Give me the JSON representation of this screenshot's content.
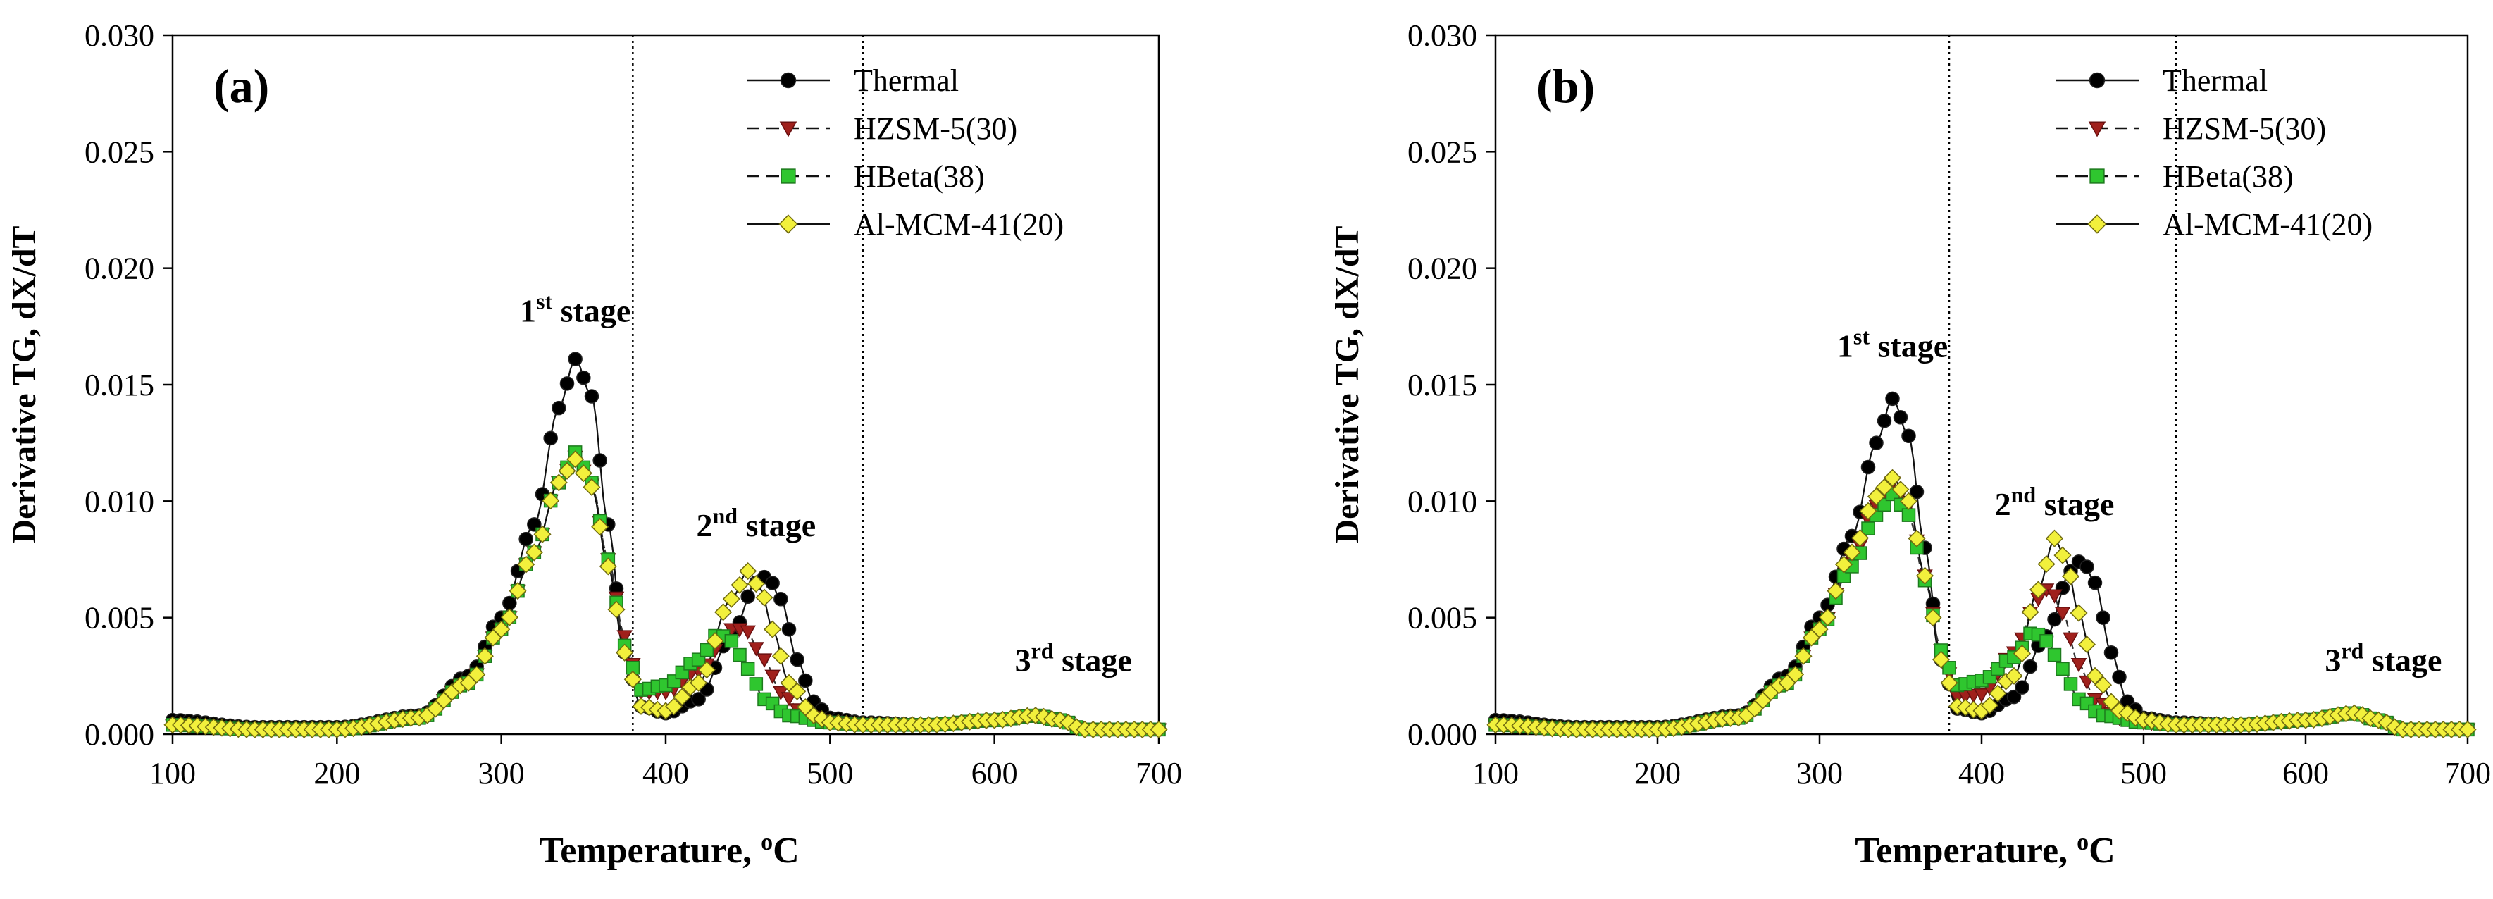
{
  "chart_data": [
    {
      "type": "line",
      "panel": "(a)",
      "xlabel": "Temperature,",
      "xlabel_unit_sup": "o",
      "xlabel_unit": "C",
      "ylabel": "Derivative TG, dX/dT",
      "xlim": [
        100,
        700
      ],
      "ylim": [
        0,
        0.03
      ],
      "xticks": [
        "100",
        "200",
        "300",
        "400",
        "500",
        "600",
        "700"
      ],
      "yticks": [
        "0.000",
        "0.005",
        "0.010",
        "0.015",
        "0.020",
        "0.025",
        "0.030"
      ],
      "grid": false,
      "legend_position": "top-right",
      "stage_dividers": [
        380,
        520
      ],
      "annotations": [
        {
          "base": "1",
          "sup": "st",
          "tail": " stage",
          "x": 345,
          "y": 0.0177
        },
        {
          "base": "2",
          "sup": "nd",
          "tail": " stage",
          "x": 455,
          "y": 0.0085
        },
        {
          "base": "3",
          "sup": "rd",
          "tail": " stage",
          "x": 648,
          "y": 0.0027
        }
      ],
      "series": [
        {
          "name": "Thermal",
          "color": "#000000",
          "marker": "circle",
          "dash": "solid",
          "points": [
            [
              100,
              0.0006
            ],
            [
              150,
              0.0003
            ],
            [
              200,
              0.0003
            ],
            [
              250,
              0.0008
            ],
            [
              280,
              0.0025
            ],
            [
              300,
              0.005
            ],
            [
              320,
              0.009
            ],
            [
              335,
              0.014
            ],
            [
              345,
              0.0161
            ],
            [
              355,
              0.0145
            ],
            [
              365,
              0.009
            ],
            [
              375,
              0.0035
            ],
            [
              385,
              0.0012
            ],
            [
              400,
              0.0009
            ],
            [
              420,
              0.0015
            ],
            [
              440,
              0.0042
            ],
            [
              455,
              0.0065
            ],
            [
              462,
              0.0068
            ],
            [
              470,
              0.0058
            ],
            [
              480,
              0.0032
            ],
            [
              490,
              0.0014
            ],
            [
              500,
              0.0007
            ],
            [
              520,
              0.0005
            ],
            [
              560,
              0.0004
            ],
            [
              600,
              0.0006
            ],
            [
              625,
              0.0008
            ],
            [
              640,
              0.0006
            ],
            [
              655,
              0.0002
            ],
            [
              700,
              0.0002
            ]
          ]
        },
        {
          "name": "HZSM-5(30)",
          "color": "#a0201c",
          "marker": "triangle-down",
          "dash": "dashed",
          "points": [
            [
              100,
              0.0004
            ],
            [
              150,
              0.0002
            ],
            [
              200,
              0.0002
            ],
            [
              250,
              0.0007
            ],
            [
              280,
              0.0022
            ],
            [
              300,
              0.0045
            ],
            [
              320,
              0.0078
            ],
            [
              335,
              0.0108
            ],
            [
              345,
              0.0119
            ],
            [
              355,
              0.0107
            ],
            [
              365,
              0.0075
            ],
            [
              375,
              0.0042
            ],
            [
              385,
              0.0018
            ],
            [
              400,
              0.0018
            ],
            [
              420,
              0.0027
            ],
            [
              440,
              0.0045
            ],
            [
              448,
              0.0045
            ],
            [
              460,
              0.0032
            ],
            [
              470,
              0.0018
            ],
            [
              485,
              0.0008
            ],
            [
              500,
              0.0005
            ],
            [
              520,
              0.0004
            ],
            [
              560,
              0.0004
            ],
            [
              600,
              0.0006
            ],
            [
              625,
              0.0008
            ],
            [
              640,
              0.0006
            ],
            [
              655,
              0.0002
            ],
            [
              700,
              0.0002
            ]
          ]
        },
        {
          "name": "HBeta(38)",
          "color": "#2fc62f",
          "marker": "square",
          "dash": "dashed",
          "points": [
            [
              100,
              0.0004
            ],
            [
              150,
              0.0002
            ],
            [
              200,
              0.0002
            ],
            [
              250,
              0.0007
            ],
            [
              280,
              0.0022
            ],
            [
              300,
              0.0045
            ],
            [
              320,
              0.0078
            ],
            [
              335,
              0.0108
            ],
            [
              345,
              0.0121
            ],
            [
              355,
              0.0108
            ],
            [
              365,
              0.0075
            ],
            [
              375,
              0.0038
            ],
            [
              385,
              0.0019
            ],
            [
              400,
              0.0021
            ],
            [
              420,
              0.0032
            ],
            [
              432,
              0.0043
            ],
            [
              440,
              0.004
            ],
            [
              450,
              0.0028
            ],
            [
              460,
              0.0015
            ],
            [
              475,
              0.0008
            ],
            [
              500,
              0.0005
            ],
            [
              520,
              0.0004
            ],
            [
              560,
              0.0004
            ],
            [
              600,
              0.0006
            ],
            [
              625,
              0.0008
            ],
            [
              640,
              0.0006
            ],
            [
              655,
              0.0002
            ],
            [
              700,
              0.0002
            ]
          ]
        },
        {
          "name": "Al-MCM-41(20)",
          "color": "#f2f03c",
          "marker": "diamond",
          "dash": "solid",
          "points": [
            [
              100,
              0.0004
            ],
            [
              150,
              0.0002
            ],
            [
              200,
              0.0002
            ],
            [
              250,
              0.0007
            ],
            [
              280,
              0.0022
            ],
            [
              300,
              0.0045
            ],
            [
              320,
              0.0078
            ],
            [
              335,
              0.0108
            ],
            [
              345,
              0.0118
            ],
            [
              355,
              0.0106
            ],
            [
              365,
              0.0072
            ],
            [
              375,
              0.0035
            ],
            [
              385,
              0.0012
            ],
            [
              400,
              0.001
            ],
            [
              420,
              0.0022
            ],
            [
              440,
              0.0058
            ],
            [
              450,
              0.007
            ],
            [
              458,
              0.0062
            ],
            [
              465,
              0.0045
            ],
            [
              475,
              0.0022
            ],
            [
              490,
              0.0008
            ],
            [
              500,
              0.0005
            ],
            [
              520,
              0.0004
            ],
            [
              560,
              0.0004
            ],
            [
              600,
              0.0006
            ],
            [
              625,
              0.0008
            ],
            [
              640,
              0.0006
            ],
            [
              655,
              0.0002
            ],
            [
              700,
              0.0002
            ]
          ]
        }
      ]
    },
    {
      "type": "line",
      "panel": "(b)",
      "xlabel": "Temperature,",
      "xlabel_unit_sup": "o",
      "xlabel_unit": "C",
      "ylabel": "Derivative TG, dX/dT",
      "xlim": [
        100,
        700
      ],
      "ylim": [
        0,
        0.03
      ],
      "xticks": [
        "100",
        "200",
        "300",
        "400",
        "500",
        "600",
        "700"
      ],
      "yticks": [
        "0.000",
        "0.005",
        "0.010",
        "0.015",
        "0.020",
        "0.025",
        "0.030"
      ],
      "grid": false,
      "legend_position": "top-right",
      "stage_dividers": [
        380,
        520
      ],
      "annotations": [
        {
          "base": "1",
          "sup": "st",
          "tail": " stage",
          "x": 345,
          "y": 0.0162
        },
        {
          "base": "2",
          "sup": "nd",
          "tail": " stage",
          "x": 445,
          "y": 0.0094
        },
        {
          "base": "3",
          "sup": "rd",
          "tail": " stage",
          "x": 648,
          "y": 0.0027
        }
      ],
      "series": [
        {
          "name": "Thermal",
          "color": "#000000",
          "marker": "circle",
          "dash": "solid",
          "points": [
            [
              100,
              0.0006
            ],
            [
              150,
              0.0003
            ],
            [
              200,
              0.0003
            ],
            [
              250,
              0.0008
            ],
            [
              280,
              0.0025
            ],
            [
              300,
              0.005
            ],
            [
              320,
              0.0085
            ],
            [
              335,
              0.0125
            ],
            [
              345,
              0.0144
            ],
            [
              355,
              0.0128
            ],
            [
              365,
              0.008
            ],
            [
              375,
              0.0032
            ],
            [
              385,
              0.0011
            ],
            [
              400,
              0.0009
            ],
            [
              420,
              0.0016
            ],
            [
              440,
              0.0042
            ],
            [
              455,
              0.007
            ],
            [
              462,
              0.0075
            ],
            [
              470,
              0.0065
            ],
            [
              480,
              0.0035
            ],
            [
              490,
              0.0014
            ],
            [
              500,
              0.0007
            ],
            [
              520,
              0.0005
            ],
            [
              560,
              0.0004
            ],
            [
              600,
              0.0006
            ],
            [
              630,
              0.0009
            ],
            [
              645,
              0.0006
            ],
            [
              660,
              0.0002
            ],
            [
              700,
              0.0002
            ]
          ]
        },
        {
          "name": "HZSM-5(30)",
          "color": "#a0201c",
          "marker": "triangle-down",
          "dash": "dashed",
          "points": [
            [
              100,
              0.0004
            ],
            [
              150,
              0.0002
            ],
            [
              200,
              0.0002
            ],
            [
              250,
              0.0007
            ],
            [
              280,
              0.0022
            ],
            [
              300,
              0.0045
            ],
            [
              320,
              0.0075
            ],
            [
              335,
              0.0098
            ],
            [
              345,
              0.0108
            ],
            [
              355,
              0.0098
            ],
            [
              365,
              0.0068
            ],
            [
              375,
              0.0036
            ],
            [
              385,
              0.0016
            ],
            [
              400,
              0.0017
            ],
            [
              420,
              0.0035
            ],
            [
              435,
              0.0058
            ],
            [
              442,
              0.0063
            ],
            [
              450,
              0.0052
            ],
            [
              460,
              0.003
            ],
            [
              470,
              0.0015
            ],
            [
              485,
              0.0007
            ],
            [
              500,
              0.0005
            ],
            [
              520,
              0.0004
            ],
            [
              560,
              0.0004
            ],
            [
              600,
              0.0006
            ],
            [
              630,
              0.0009
            ],
            [
              645,
              0.0006
            ],
            [
              660,
              0.0002
            ],
            [
              700,
              0.0002
            ]
          ]
        },
        {
          "name": "HBeta(38)",
          "color": "#2fc62f",
          "marker": "square",
          "dash": "dashed",
          "points": [
            [
              100,
              0.0004
            ],
            [
              150,
              0.0002
            ],
            [
              200,
              0.0002
            ],
            [
              250,
              0.0007
            ],
            [
              280,
              0.0022
            ],
            [
              300,
              0.0045
            ],
            [
              320,
              0.0072
            ],
            [
              335,
              0.0094
            ],
            [
              345,
              0.0103
            ],
            [
              355,
              0.0094
            ],
            [
              365,
              0.0066
            ],
            [
              375,
              0.0036
            ],
            [
              385,
              0.0021
            ],
            [
              400,
              0.0023
            ],
            [
              420,
              0.0033
            ],
            [
              432,
              0.0044
            ],
            [
              440,
              0.004
            ],
            [
              450,
              0.0028
            ],
            [
              460,
              0.0015
            ],
            [
              475,
              0.0008
            ],
            [
              500,
              0.0005
            ],
            [
              520,
              0.0004
            ],
            [
              560,
              0.0004
            ],
            [
              600,
              0.0006
            ],
            [
              630,
              0.0009
            ],
            [
              645,
              0.0006
            ],
            [
              660,
              0.0002
            ],
            [
              700,
              0.0002
            ]
          ]
        },
        {
          "name": "Al-MCM-41(20)",
          "color": "#f2f03c",
          "marker": "diamond",
          "dash": "solid",
          "points": [
            [
              100,
              0.0004
            ],
            [
              150,
              0.0002
            ],
            [
              200,
              0.0002
            ],
            [
              250,
              0.0007
            ],
            [
              280,
              0.0022
            ],
            [
              300,
              0.0045
            ],
            [
              320,
              0.0078
            ],
            [
              335,
              0.0102
            ],
            [
              345,
              0.011
            ],
            [
              355,
              0.01
            ],
            [
              365,
              0.0068
            ],
            [
              375,
              0.0032
            ],
            [
              385,
              0.0012
            ],
            [
              400,
              0.001
            ],
            [
              420,
              0.0025
            ],
            [
              435,
              0.0062
            ],
            [
              445,
              0.0084
            ],
            [
              452,
              0.0075
            ],
            [
              460,
              0.0052
            ],
            [
              470,
              0.0025
            ],
            [
              485,
              0.001
            ],
            [
              500,
              0.0006
            ],
            [
              520,
              0.0004
            ],
            [
              560,
              0.0004
            ],
            [
              600,
              0.0006
            ],
            [
              630,
              0.0009
            ],
            [
              645,
              0.0006
            ],
            [
              660,
              0.0002
            ],
            [
              700,
              0.0002
            ]
          ]
        }
      ]
    }
  ]
}
